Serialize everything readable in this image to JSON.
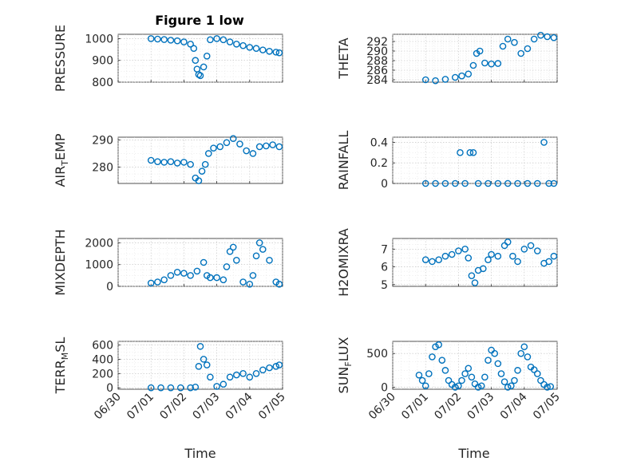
{
  "figure_title": "Figure 1 low",
  "chart_data": [
    {
      "type": "scatter",
      "ylabel": "PRESSURE",
      "ylim": [
        800,
        1020
      ],
      "yticks": [
        800,
        900,
        1000
      ],
      "xlim": [
        0,
        5
      ],
      "series_color": "#0072BD",
      "x": [
        1.0,
        1.2,
        1.4,
        1.6,
        1.8,
        2.0,
        2.2,
        2.3,
        2.35,
        2.4,
        2.45,
        2.5,
        2.6,
        2.7,
        2.8,
        3.0,
        3.2,
        3.4,
        3.6,
        3.8,
        4.0,
        4.2,
        4.4,
        4.6,
        4.8,
        4.9
      ],
      "y": [
        1000,
        998,
        996,
        993,
        990,
        985,
        975,
        955,
        900,
        860,
        835,
        830,
        870,
        920,
        995,
        1000,
        995,
        985,
        975,
        968,
        960,
        955,
        948,
        942,
        938,
        935
      ]
    },
    {
      "type": "scatter",
      "ylabel": "THETA",
      "ylim": [
        283.5,
        293.5
      ],
      "yticks": [
        284,
        286,
        288,
        290,
        292
      ],
      "xlim": [
        0,
        5
      ],
      "series_color": "#0072BD",
      "x": [
        1.0,
        1.3,
        1.6,
        1.9,
        2.1,
        2.3,
        2.45,
        2.55,
        2.65,
        2.8,
        3.0,
        3.2,
        3.35,
        3.5,
        3.7,
        3.9,
        4.1,
        4.3,
        4.5,
        4.7,
        4.9
      ],
      "y": [
        284.0,
        283.8,
        284.1,
        284.5,
        284.8,
        285.2,
        287.0,
        289.5,
        290.0,
        287.5,
        287.3,
        287.4,
        291.0,
        292.5,
        291.8,
        289.5,
        290.5,
        292.5,
        293.3,
        293.0,
        292.8
      ]
    },
    {
      "type": "scatter",
      "ylabel": "AIR_TEMP",
      "ylim": [
        274,
        291
      ],
      "yticks": [
        280,
        290
      ],
      "xlim": [
        0,
        5
      ],
      "series_color": "#0072BD",
      "x": [
        1.0,
        1.2,
        1.4,
        1.6,
        1.8,
        2.0,
        2.2,
        2.35,
        2.45,
        2.55,
        2.65,
        2.75,
        2.9,
        3.1,
        3.3,
        3.5,
        3.7,
        3.9,
        4.1,
        4.3,
        4.5,
        4.7,
        4.9
      ],
      "y": [
        282.5,
        282.0,
        281.8,
        282.0,
        281.5,
        281.8,
        281.0,
        276.0,
        275.0,
        278.5,
        281.0,
        285.0,
        287.0,
        287.5,
        289.0,
        290.5,
        288.5,
        286.0,
        285.0,
        287.5,
        287.8,
        288.2,
        287.5
      ]
    },
    {
      "type": "scatter",
      "ylabel": "RAINFALL",
      "ylim": [
        0,
        0.45
      ],
      "yticks": [
        0,
        0.2,
        0.4
      ],
      "xlim": [
        0,
        5
      ],
      "series_color": "#0072BD",
      "x": [
        1.0,
        1.3,
        1.6,
        1.9,
        2.05,
        2.2,
        2.35,
        2.45,
        2.6,
        2.9,
        3.2,
        3.5,
        3.8,
        4.1,
        4.4,
        4.6,
        4.75,
        4.9
      ],
      "y": [
        0,
        0,
        0,
        0,
        0.3,
        0,
        0.3,
        0.3,
        0,
        0,
        0,
        0,
        0,
        0,
        0,
        0.4,
        0,
        0
      ]
    },
    {
      "type": "scatter",
      "ylabel": "MIXDEPTH",
      "ylim": [
        0,
        2200
      ],
      "yticks": [
        0,
        1000,
        2000
      ],
      "xlim": [
        0,
        5
      ],
      "series_color": "#0072BD",
      "x": [
        1.0,
        1.2,
        1.4,
        1.6,
        1.8,
        2.0,
        2.2,
        2.4,
        2.6,
        2.7,
        2.8,
        3.0,
        3.2,
        3.3,
        3.4,
        3.5,
        3.6,
        3.8,
        4.0,
        4.1,
        4.2,
        4.3,
        4.4,
        4.6,
        4.8,
        4.9
      ],
      "y": [
        150,
        200,
        300,
        500,
        650,
        600,
        500,
        700,
        1100,
        500,
        400,
        400,
        300,
        900,
        1600,
        1800,
        1200,
        200,
        100,
        500,
        1400,
        2000,
        1700,
        1200,
        200,
        100
      ]
    },
    {
      "type": "scatter",
      "ylabel": "H2OMIXRA",
      "ylim": [
        4.9,
        7.6
      ],
      "yticks": [
        5,
        6,
        7
      ],
      "xlim": [
        0,
        5
      ],
      "series_color": "#0072BD",
      "x": [
        1.0,
        1.2,
        1.4,
        1.6,
        1.8,
        2.0,
        2.2,
        2.3,
        2.4,
        2.5,
        2.6,
        2.75,
        2.9,
        3.0,
        3.2,
        3.4,
        3.5,
        3.65,
        3.8,
        4.0,
        4.2,
        4.4,
        4.6,
        4.75,
        4.9
      ],
      "y": [
        6.4,
        6.3,
        6.4,
        6.6,
        6.7,
        6.9,
        7.0,
        6.5,
        5.5,
        5.1,
        5.8,
        5.9,
        6.4,
        6.7,
        6.6,
        7.2,
        7.4,
        6.6,
        6.3,
        7.0,
        7.2,
        6.9,
        6.2,
        6.3,
        6.6
      ]
    },
    {
      "type": "scatter",
      "ylabel": "TERR_MSL",
      "ylim": [
        -20,
        650
      ],
      "yticks": [
        0,
        200,
        400,
        600
      ],
      "xlim": [
        0,
        5
      ],
      "series_color": "#0072BD",
      "x": [
        1.0,
        1.3,
        1.6,
        1.9,
        2.2,
        2.35,
        2.45,
        2.5,
        2.6,
        2.7,
        2.8,
        3.0,
        3.2,
        3.4,
        3.6,
        3.8,
        4.0,
        4.2,
        4.4,
        4.6,
        4.8,
        4.9
      ],
      "y": [
        0,
        0,
        0,
        0,
        0,
        10,
        300,
        580,
        400,
        320,
        150,
        20,
        50,
        150,
        180,
        200,
        150,
        200,
        250,
        280,
        300,
        320
      ]
    },
    {
      "type": "scatter",
      "ylabel": "SUN_FLUX",
      "ylim": [
        -30,
        680
      ],
      "yticks": [
        0,
        500
      ],
      "xlim": [
        0,
        5
      ],
      "series_color": "#0072BD",
      "x": [
        0.8,
        0.9,
        1.0,
        1.1,
        1.2,
        1.3,
        1.4,
        1.5,
        1.6,
        1.7,
        1.8,
        1.9,
        2.0,
        2.1,
        2.2,
        2.3,
        2.4,
        2.5,
        2.6,
        2.7,
        2.8,
        2.9,
        3.0,
        3.1,
        3.2,
        3.3,
        3.4,
        3.5,
        3.6,
        3.7,
        3.8,
        3.9,
        4.0,
        4.1,
        4.2,
        4.3,
        4.4,
        4.5,
        4.6,
        4.7,
        4.8
      ],
      "y": [
        180,
        100,
        20,
        200,
        450,
        600,
        630,
        400,
        250,
        100,
        40,
        0,
        20,
        100,
        200,
        280,
        150,
        50,
        0,
        20,
        150,
        400,
        550,
        500,
        350,
        200,
        80,
        0,
        20,
        100,
        250,
        500,
        600,
        450,
        300,
        260,
        200,
        100,
        40,
        0,
        10
      ]
    }
  ],
  "x_tick_labels": [
    "06/30",
    "07/01",
    "07/02",
    "07/03",
    "07/04",
    "07/05"
  ],
  "xlabel": "Time"
}
